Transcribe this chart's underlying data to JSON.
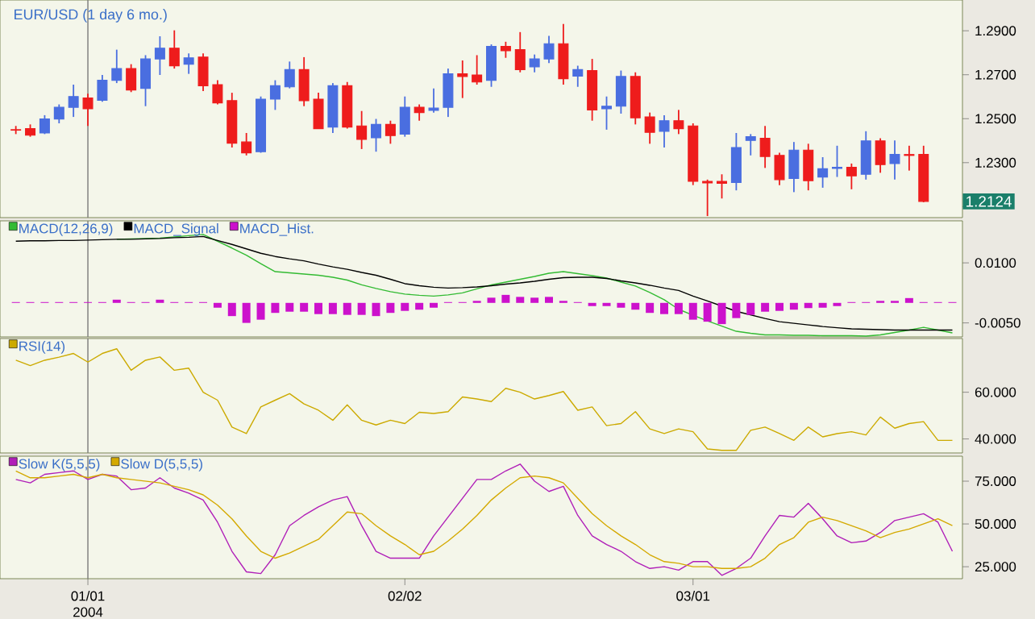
{
  "chart_data": [
    {
      "type": "candlestick",
      "title": "EUR/USD (1 day 6 mo.)",
      "categories": [
        null,
        null,
        null,
        null,
        null,
        "01/01 2004",
        null,
        null,
        null,
        null,
        null,
        null,
        null,
        null,
        null,
        null,
        null,
        null,
        null,
        null,
        null,
        null,
        null,
        null,
        null,
        null,
        null,
        "02/02",
        null,
        null,
        null,
        null,
        null,
        null,
        null,
        null,
        null,
        null,
        null,
        null,
        null,
        null,
        null,
        null,
        null,
        null,
        null,
        "03/01",
        null,
        null,
        null,
        null,
        null,
        null,
        null,
        null,
        null,
        null,
        null,
        null,
        null,
        null,
        null,
        null,
        null,
        null
      ],
      "ohlc": [
        [
          1.245,
          1.2467,
          1.243,
          1.2448
        ],
        [
          1.2455,
          1.2474,
          1.2418,
          1.2425
        ],
        [
          1.2435,
          1.2516,
          1.243,
          1.2499
        ],
        [
          1.2499,
          1.2565,
          1.2479,
          1.2552
        ],
        [
          1.2552,
          1.2655,
          1.2508,
          1.2601
        ],
        [
          1.2594,
          1.2614,
          1.2467,
          1.2545
        ],
        [
          1.2584,
          1.2699,
          1.2577,
          1.2675
        ],
        [
          1.2675,
          1.2814,
          1.2662,
          1.2728
        ],
        [
          1.2728,
          1.2748,
          1.2621,
          1.2631
        ],
        [
          1.2638,
          1.2789,
          1.2557,
          1.2772
        ],
        [
          1.2772,
          1.2875,
          1.2699,
          1.2821
        ],
        [
          1.2821,
          1.2902,
          1.2728,
          1.2741
        ],
        [
          1.2748,
          1.2797,
          1.2704,
          1.2777
        ],
        [
          1.278,
          1.2797,
          1.2626,
          1.265
        ],
        [
          1.2655,
          1.2675,
          1.2565,
          1.2572
        ],
        [
          1.2582,
          1.2618,
          1.2369,
          1.2389
        ],
        [
          1.2394,
          1.2435,
          1.2333,
          1.2345
        ],
        [
          1.235,
          1.2601,
          1.2345,
          1.2589
        ],
        [
          1.2589,
          1.2675,
          1.254,
          1.265
        ],
        [
          1.2645,
          1.276,
          1.2638,
          1.2723
        ],
        [
          1.2723,
          1.278,
          1.2557,
          1.2582
        ],
        [
          1.2589,
          1.2618,
          1.2453,
          1.2455
        ],
        [
          1.2462,
          1.2662,
          1.2435,
          1.265
        ],
        [
          1.265,
          1.2667,
          1.2455,
          1.2462
        ],
        [
          1.2467,
          1.2535,
          1.2362,
          1.2406
        ],
        [
          1.2413,
          1.2499,
          1.235,
          1.2474
        ],
        [
          1.2474,
          1.2491,
          1.2386,
          1.2423
        ],
        [
          1.243,
          1.2601,
          1.2418,
          1.2552
        ],
        [
          1.2552,
          1.2565,
          1.2491,
          1.2528
        ],
        [
          1.2538,
          1.2638,
          1.2528,
          1.2548
        ],
        [
          1.2552,
          1.2728,
          1.2508,
          1.2704
        ],
        [
          1.2704,
          1.2765,
          1.2594,
          1.2692
        ],
        [
          1.2699,
          1.2789,
          1.2655,
          1.2667
        ],
        [
          1.2675,
          1.2838,
          1.2645,
          1.2829
        ],
        [
          1.2829,
          1.285,
          1.2777,
          1.2809
        ],
        [
          1.2814,
          1.2894,
          1.2711,
          1.2723
        ],
        [
          1.2736,
          1.2792,
          1.2711,
          1.2772
        ],
        [
          1.2772,
          1.2877,
          1.2753,
          1.2841
        ],
        [
          1.2841,
          1.2931,
          1.2655,
          1.2682
        ],
        [
          1.2694,
          1.2741,
          1.2645,
          1.2723
        ],
        [
          1.2719,
          1.2772,
          1.2491,
          1.254
        ],
        [
          1.2545,
          1.2601,
          1.245,
          1.2557
        ],
        [
          1.2557,
          1.2719,
          1.2523,
          1.2692
        ],
        [
          1.2692,
          1.2711,
          1.2474,
          1.2504
        ],
        [
          1.2508,
          1.2528,
          1.2386,
          1.2438
        ],
        [
          1.2443,
          1.2516,
          1.2369,
          1.2491
        ],
        [
          1.2491,
          1.254,
          1.243,
          1.2455
        ],
        [
          1.2467,
          1.2479,
          1.2198,
          1.2215
        ],
        [
          1.2215,
          1.2223,
          1.2057,
          1.2208
        ],
        [
          1.2215,
          1.2247,
          1.2137,
          1.2206
        ],
        [
          1.221,
          1.2435,
          1.2174,
          1.2369
        ],
        [
          1.2401,
          1.243,
          1.2333,
          1.2418
        ],
        [
          1.2411,
          1.2467,
          1.2276,
          1.2328
        ],
        [
          1.2333,
          1.2345,
          1.2198,
          1.2223
        ],
        [
          1.2228,
          1.2394,
          1.2166,
          1.2357
        ],
        [
          1.2357,
          1.2386,
          1.2174,
          1.2218
        ],
        [
          1.2235,
          1.2325,
          1.2186,
          1.2272
        ],
        [
          1.2274,
          1.2377,
          1.2235,
          1.2279
        ],
        [
          1.2279,
          1.2296,
          1.2179,
          1.224
        ],
        [
          1.2247,
          1.2443,
          1.2223,
          1.2399
        ],
        [
          1.2399,
          1.2411,
          1.2254,
          1.2291
        ],
        [
          1.2296,
          1.2401,
          1.2223,
          1.2337
        ],
        [
          1.2337,
          1.2377,
          1.2264,
          1.2333
        ],
        [
          1.2337,
          1.2377,
          1.212,
          1.2124
        ],
        null,
        null
      ],
      "colors": [
        "#ee1c1c",
        "#ee1c1c",
        "#4a6ee0",
        "#4a6ee0",
        "#4a6ee0",
        "#ee1c1c",
        "#4a6ee0",
        "#4a6ee0",
        "#ee1c1c",
        "#4a6ee0",
        "#4a6ee0",
        "#ee1c1c",
        "#4a6ee0",
        "#ee1c1c",
        "#ee1c1c",
        "#ee1c1c",
        "#ee1c1c",
        "#4a6ee0",
        "#4a6ee0",
        "#4a6ee0",
        "#ee1c1c",
        "#ee1c1c",
        "#4a6ee0",
        "#ee1c1c",
        "#ee1c1c",
        "#4a6ee0",
        "#ee1c1c",
        "#4a6ee0",
        "#ee1c1c",
        "#4a6ee0",
        "#4a6ee0",
        "#ee1c1c",
        "#ee1c1c",
        "#4a6ee0",
        "#ee1c1c",
        "#ee1c1c",
        "#4a6ee0",
        "#4a6ee0",
        "#ee1c1c",
        "#4a6ee0",
        "#ee1c1c",
        "#4a6ee0",
        "#4a6ee0",
        "#ee1c1c",
        "#ee1c1c",
        "#4a6ee0",
        "#ee1c1c",
        "#ee1c1c",
        "#ee1c1c",
        "#ee1c1c",
        "#4a6ee0",
        "#4a6ee0",
        "#ee1c1c",
        "#ee1c1c",
        "#4a6ee0",
        "#ee1c1c",
        "#4a6ee0",
        "#4a6ee0",
        "#ee1c1c",
        "#4a6ee0",
        "#ee1c1c",
        "#4a6ee0",
        "#ee1c1c",
        "#ee1c1c",
        null,
        null
      ],
      "ylim": [
        1.205,
        1.304
      ],
      "yticks": [
        {
          "value": 1.21,
          "label": null
        },
        {
          "value": 1.23,
          "label": "1.2300"
        },
        {
          "value": 1.25,
          "label": "1.2500"
        },
        {
          "value": 1.27,
          "label": "1.2700"
        },
        {
          "value": 1.29,
          "label": "1.2900"
        }
      ],
      "annotations": [
        {
          "text": "1.2124",
          "y": 1.2124
        }
      ],
      "ref_lines": [
        {
          "axis": "x",
          "value": "01/01 2004",
          "color": "#7a7a7a"
        }
      ],
      "tick_labels": "y"
    },
    {
      "type": "line",
      "legend": "top left",
      "categories": [
        null,
        null,
        null,
        null,
        null,
        "01/01 2004",
        null,
        null,
        null,
        null,
        null,
        null,
        null,
        null,
        null,
        null,
        null,
        null,
        null,
        null,
        null,
        null,
        null,
        null,
        null,
        null,
        null,
        "02/02",
        null,
        null,
        null,
        null,
        null,
        null,
        null,
        null,
        null,
        null,
        null,
        null,
        null,
        null,
        null,
        null,
        null,
        null,
        null,
        "03/01",
        null,
        null,
        null,
        null,
        null,
        null,
        null,
        null,
        null,
        null,
        null,
        null,
        null,
        null,
        null,
        null,
        null,
        null
      ],
      "ylim": [
        -0.0085,
        0.0205
      ],
      "yticks": [
        {
          "value": -0.005,
          "label": "-0.0050"
        },
        {
          "value": 0.01,
          "label": "0.0100"
        }
      ],
      "series": [
        {
          "name": "MACD(12,26,9)",
          "color": "#33bb33",
          "values": [
            null,
            null,
            null,
            null,
            null,
            null,
            null,
            0.0159,
            0.016,
            0.0161,
            0.0162,
            0.0165,
            0.0168,
            0.0171,
            0.0154,
            0.0137,
            0.0119,
            0.0098,
            0.0078,
            0.0075,
            0.0072,
            0.0069,
            0.0064,
            0.0057,
            0.0045,
            0.0036,
            0.0028,
            0.0022,
            0.0019,
            0.0017,
            0.002,
            0.0025,
            0.0035,
            0.0045,
            0.0052,
            0.0059,
            0.0066,
            0.0074,
            0.0078,
            0.0073,
            0.0068,
            0.0062,
            0.0052,
            0.0042,
            0.0026,
            0.0008,
            -0.0016,
            -0.0031,
            -0.0045,
            -0.0058,
            -0.0071,
            -0.0076,
            -0.008,
            -0.008,
            -0.0081,
            -0.0081,
            -0.0082,
            -0.0082,
            -0.0082,
            -0.0083,
            -0.008,
            -0.0074,
            -0.0068,
            -0.0061,
            -0.0068,
            -0.0075
          ]
        },
        {
          "name": "MACD_Signal",
          "color": "#000000",
          "values": [
            0.0154,
            0.0155,
            0.0155,
            0.0156,
            0.0156,
            0.0157,
            0.0158,
            0.0159,
            0.0159,
            0.016,
            0.0161,
            0.0163,
            0.0164,
            0.0166,
            0.0156,
            0.0146,
            0.0135,
            0.0124,
            0.0116,
            0.011,
            0.0105,
            0.0097,
            0.009,
            0.0084,
            0.0076,
            0.0069,
            0.0059,
            0.0048,
            0.0043,
            0.0039,
            0.0037,
            0.0038,
            0.004,
            0.0043,
            0.0047,
            0.005,
            0.0054,
            0.0059,
            0.0063,
            0.0064,
            0.0064,
            0.0061,
            0.0055,
            0.005,
            0.0044,
            0.0037,
            0.0031,
            0.0017,
            0.0005,
            -0.0008,
            -0.0021,
            -0.003,
            -0.0039,
            -0.0047,
            -0.0051,
            -0.0055,
            -0.0059,
            -0.0062,
            -0.0065,
            -0.0066,
            -0.0067,
            -0.0068,
            -0.0068,
            -0.0068,
            -0.0068,
            -0.0068
          ]
        },
        {
          "name": "MACD_Hist.",
          "type": "bar",
          "color": "#cc11cc",
          "values": [
            0.0002,
            0.0002,
            0.0002,
            0.0002,
            0.0002,
            0.0002,
            0.0002,
            0.0008,
            0.0002,
            0.0002,
            0.0008,
            0.0002,
            0.0002,
            0.0002,
            -0.0012,
            -0.0033,
            -0.005,
            -0.0042,
            -0.0025,
            -0.0022,
            -0.0022,
            -0.0028,
            -0.0028,
            -0.003,
            -0.003,
            -0.0033,
            -0.0025,
            -0.002,
            -0.0017,
            -0.0012,
            0.0002,
            0.0002,
            0.0005,
            0.0013,
            0.002,
            0.0015,
            0.0013,
            0.0015,
            0.0005,
            0.0002,
            -0.0008,
            -0.0008,
            -0.0012,
            -0.0017,
            -0.0025,
            -0.0028,
            -0.0028,
            -0.0042,
            -0.0047,
            -0.0053,
            -0.0038,
            -0.003,
            -0.0022,
            -0.002,
            -0.0017,
            -0.0013,
            -0.0012,
            -0.0008,
            0.0002,
            0.0002,
            0.0005,
            0.0005,
            0.0012,
            0.0002,
            0.0002,
            0.0002
          ]
        }
      ],
      "ref_lines": [
        {
          "axis": "x",
          "value": "01/01 2004",
          "color": "#7a7a7a"
        }
      ],
      "tick_labels": "y"
    },
    {
      "type": "line",
      "legend": "top left",
      "categories": [
        null,
        null,
        null,
        null,
        null,
        "01/01 2004",
        null,
        null,
        null,
        null,
        null,
        null,
        null,
        null,
        null,
        null,
        null,
        null,
        null,
        null,
        null,
        null,
        null,
        null,
        null,
        null,
        null,
        "02/02",
        null,
        null,
        null,
        null,
        null,
        null,
        null,
        null,
        null,
        null,
        null,
        null,
        null,
        null,
        null,
        null,
        null,
        null,
        null,
        "03/01",
        null,
        null,
        null,
        null,
        null,
        null,
        null,
        null,
        null,
        null,
        null,
        null,
        null,
        null,
        null,
        null,
        null,
        null
      ],
      "ylim": [
        34,
        83
      ],
      "yticks": [
        {
          "value": 40,
          "label": "40.000"
        },
        {
          "value": 60,
          "label": "60.000"
        }
      ],
      "series": [
        {
          "name": "RSI(14)",
          "color": "#ccaa00",
          "values": [
            73.7,
            71.4,
            73.7,
            75.0,
            76.6,
            72.9,
            76.6,
            78.6,
            69.4,
            73.7,
            75.1,
            69.4,
            70.3,
            60.0,
            56.6,
            45.1,
            42.3,
            53.7,
            56.6,
            59.4,
            55.0,
            52.3,
            48.0,
            54.6,
            48.0,
            46.0,
            48.0,
            46.6,
            51.4,
            50.9,
            51.7,
            58.0,
            57.1,
            56.0,
            61.7,
            60.0,
            57.1,
            58.6,
            60.3,
            52.3,
            53.7,
            45.7,
            46.6,
            51.7,
            44.3,
            42.3,
            44.3,
            43.1,
            35.7,
            35.1,
            35.1,
            43.7,
            45.1,
            42.3,
            39.4,
            45.1,
            40.9,
            42.3,
            43.1,
            41.7,
            49.4,
            44.6,
            46.6,
            47.4,
            39.4,
            39.4
          ]
        }
      ],
      "ref_lines": [
        {
          "axis": "x",
          "value": "01/01 2004",
          "color": "#7a7a7a"
        }
      ],
      "tick_labels": "y"
    },
    {
      "type": "line",
      "legend": "top left",
      "categories": [
        null,
        null,
        null,
        null,
        null,
        "01/01 2004",
        null,
        null,
        null,
        null,
        null,
        null,
        null,
        null,
        null,
        null,
        null,
        null,
        null,
        null,
        null,
        null,
        null,
        null,
        null,
        null,
        null,
        "02/02",
        null,
        null,
        null,
        null,
        null,
        null,
        null,
        null,
        null,
        null,
        null,
        null,
        null,
        null,
        null,
        null,
        null,
        null,
        null,
        "03/01",
        null,
        null,
        null,
        null,
        null,
        null,
        null,
        null,
        null,
        null,
        null,
        null,
        null,
        null,
        null,
        null,
        null,
        null
      ],
      "ylim": [
        18,
        89.6
      ],
      "yticks": [
        {
          "value": 25,
          "label": "25.000"
        },
        {
          "value": 50,
          "label": "50.000"
        },
        {
          "value": 75,
          "label": "75.000"
        }
      ],
      "series": [
        {
          "name": "Slow K(5,5,5)",
          "color": "#b01fb8",
          "values": [
            76,
            74,
            79,
            80,
            81,
            76,
            79,
            78,
            70,
            71,
            77,
            71,
            68,
            64,
            51,
            34,
            22,
            21,
            32,
            49,
            55,
            60,
            64,
            66,
            49,
            34,
            30,
            30,
            30,
            43,
            54,
            65,
            76,
            76,
            81,
            85,
            75,
            69,
            72,
            55,
            43,
            38,
            34,
            28,
            24,
            25,
            23,
            28,
            28,
            20,
            24,
            30,
            43,
            55,
            54,
            62,
            53,
            43,
            39,
            40,
            45,
            52,
            54,
            56,
            51,
            34
          ]
        },
        {
          "name": "Slow D(5,5,5)",
          "color": "#d4a900",
          "values": [
            81,
            77,
            77,
            78,
            79,
            77,
            79,
            77,
            76,
            75,
            74,
            72,
            70,
            67,
            61,
            53,
            43,
            34,
            30,
            33,
            37,
            41,
            49,
            57,
            56,
            49,
            43,
            38,
            32,
            34,
            40,
            47,
            55,
            64,
            71,
            77,
            78,
            77,
            74,
            65,
            56,
            49,
            43,
            38,
            32,
            28,
            27,
            25,
            25,
            24,
            24,
            25,
            30,
            38,
            42,
            51,
            54,
            52,
            49,
            46,
            42,
            45,
            47,
            50,
            53,
            49
          ]
        }
      ],
      "ref_lines": [
        {
          "axis": "x",
          "value": "01/01 2004",
          "color": "#7a7a7a"
        }
      ]
    }
  ]
}
